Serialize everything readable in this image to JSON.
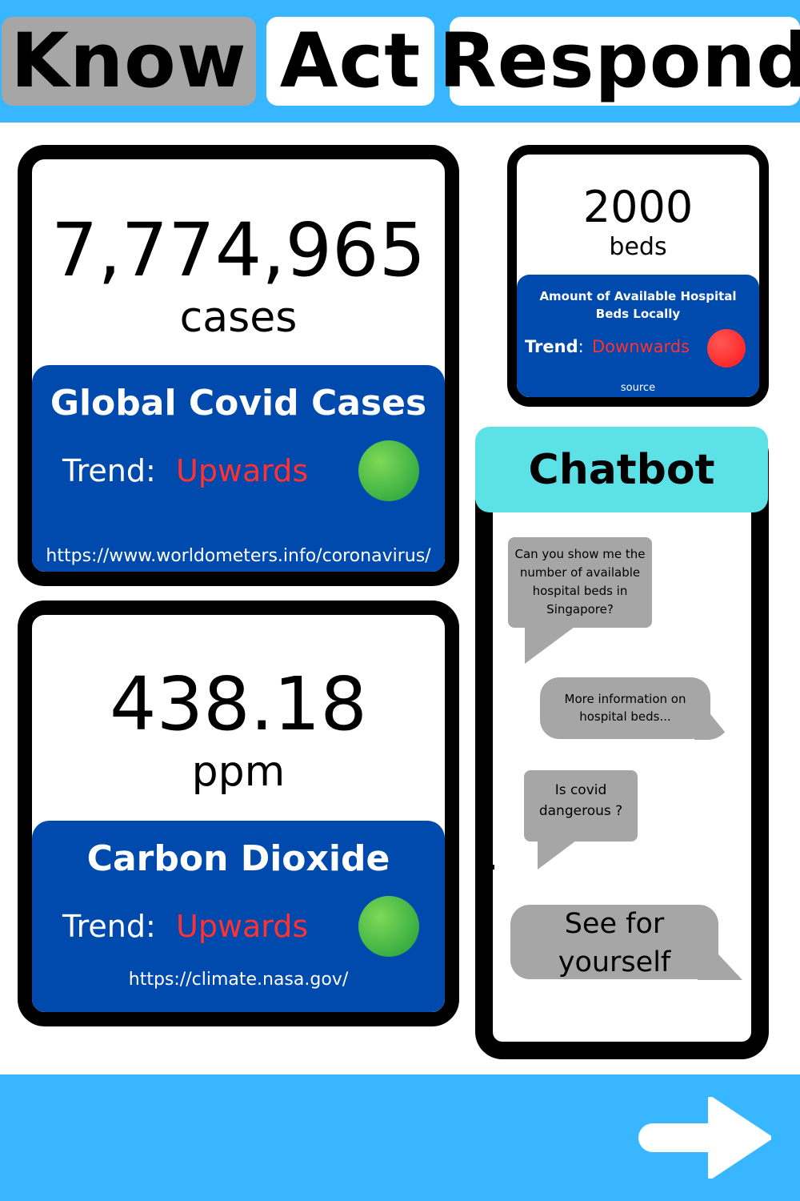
{
  "tabs": {
    "know": "Know",
    "act": "Act",
    "respond": "Respond"
  },
  "cases_card": {
    "value": "7,774,965",
    "unit": "cases",
    "title": "Global Covid Cases",
    "trend_label": "Trend:",
    "trend_value": "Upwards",
    "indicator_color": "#2ea84a",
    "source": "https://www.worldometers.info/coronavirus/"
  },
  "co2_card": {
    "value": "438.18",
    "unit": "ppm",
    "title": "Carbon Dioxide",
    "trend_label": "Trend:",
    "trend_value": "Upwards",
    "indicator_color": "#2ea84a",
    "source": "https://climate.nasa.gov/"
  },
  "beds_card": {
    "value": "2000",
    "unit": "beds",
    "title": "Amount of Available Hospital Beds Locally",
    "trend_label": "Trend",
    "trend_colon": ":",
    "trend_value": "Downwards",
    "indicator_color": "#ff3131",
    "source": "source"
  },
  "chatbot": {
    "title": "Chatbot",
    "messages": [
      "Can you show me the number of available hospital beds in Singapore?",
      "More information on hospital beds...",
      "Is covid dangerous ?",
      "See for yourself"
    ]
  },
  "colors": {
    "bar_blue": "#38b6ff",
    "panel_blue": "#004aad",
    "tab_active": "#a6a6a6",
    "chat_header": "#5ce1e6",
    "trend_red": "#ff3131"
  },
  "navigation": {
    "next_icon": "right-arrow-icon"
  }
}
